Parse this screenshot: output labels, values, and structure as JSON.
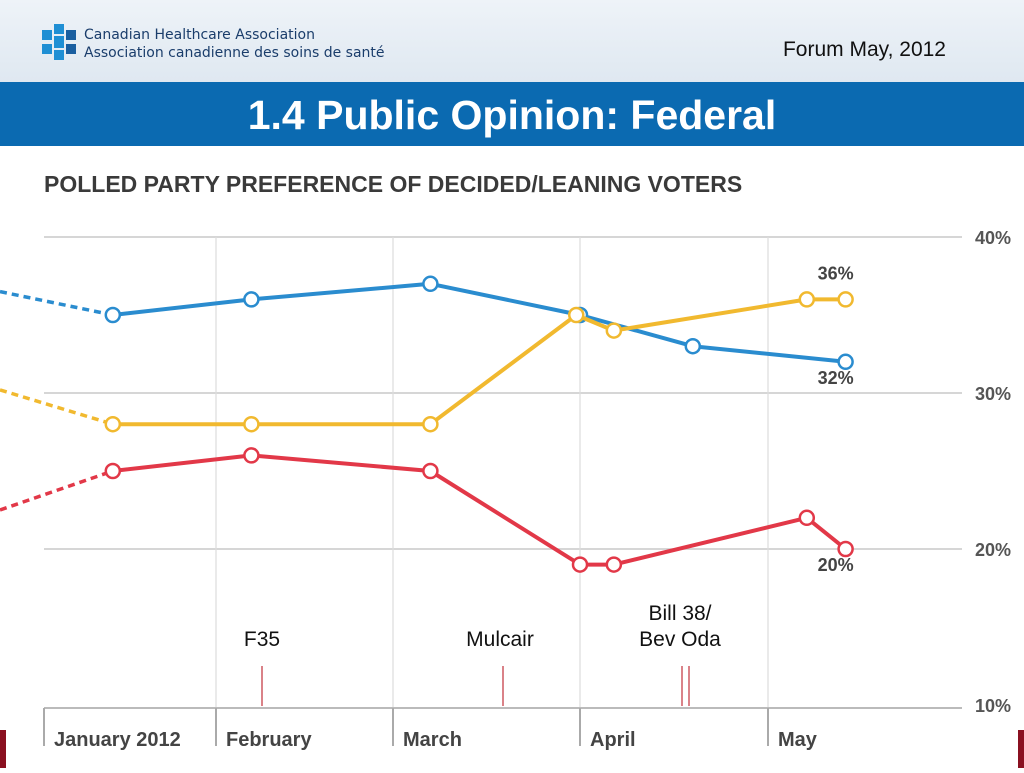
{
  "header": {
    "org_line_1": "Canadian Healthcare Association",
    "org_line_2": "Association canadienne des soins de santé",
    "forum": "Forum May, 2012",
    "logo_icon": "cha-logo-icon"
  },
  "slide": {
    "title": "1.4 Public Opinion: Federal"
  },
  "colors": {
    "banner": "#0b6ab1",
    "blue": "#2a8ccf",
    "yellow": "#f1b92f",
    "red": "#e23848"
  },
  "chart_data": {
    "type": "line",
    "title": "POLLED PARTY PREFERENCE OF DECIDED/LEANING VOTERS",
    "months": [
      "January 2012",
      "February",
      "March",
      "April",
      "May"
    ],
    "y_ticks": [
      "40%",
      "30%",
      "20%",
      "10%"
    ],
    "ylim": [
      10,
      40
    ],
    "grid": true,
    "series": [
      {
        "color": "#2a8ccf",
        "x": [
          0.4,
          1.2,
          2.2,
          3.0,
          3.6,
          4.4
        ],
        "values": [
          35,
          36,
          37,
          35,
          33,
          32
        ],
        "end_label": "32%"
      },
      {
        "color": "#f1b92f",
        "x": [
          0.4,
          1.2,
          2.2,
          2.98,
          3.18,
          4.2,
          4.4
        ],
        "values": [
          28,
          28,
          28,
          35,
          34,
          36,
          36
        ],
        "end_label": "36%"
      },
      {
        "color": "#e23848",
        "x": [
          0.4,
          1.2,
          2.2,
          3.0,
          3.18,
          4.2,
          4.4
        ],
        "values": [
          25,
          26,
          25,
          19,
          19,
          22,
          20
        ],
        "end_label": "20%"
      }
    ],
    "annotations": [
      {
        "lines": [
          "F35"
        ]
      },
      {
        "lines": [
          "Mulcair"
        ]
      },
      {
        "lines": [
          "Bill 38/",
          "Bev Oda"
        ]
      }
    ]
  }
}
